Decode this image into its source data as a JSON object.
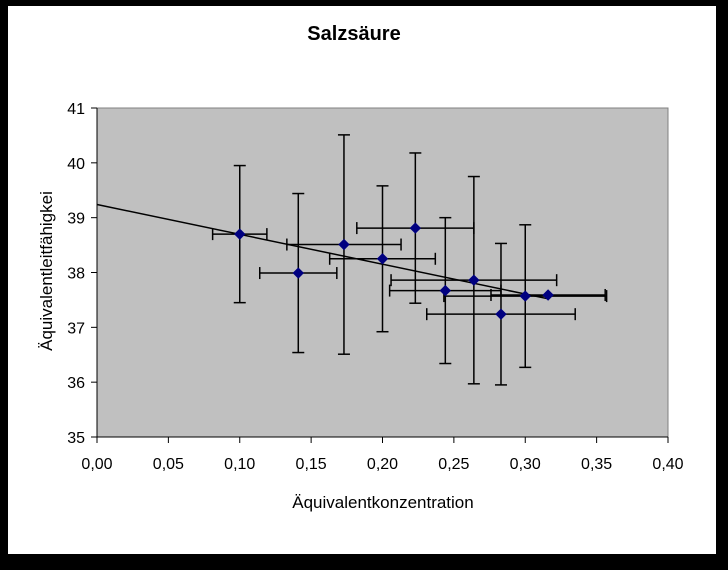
{
  "chart_data": {
    "type": "scatter",
    "title": "Salzsäure",
    "xlabel": "Äquivalentkonzentration",
    "ylabel": "Äquivalentleitfähigkei",
    "xlim": [
      0,
      0.4
    ],
    "ylim": [
      35,
      41
    ],
    "x_ticks": [
      "0,00",
      "0,05",
      "0,10",
      "0,15",
      "0,20",
      "0,25",
      "0,30",
      "0,35",
      "0,40"
    ],
    "y_ticks": [
      "35",
      "36",
      "37",
      "38",
      "39",
      "40",
      "41"
    ],
    "grid": false,
    "legend": "none",
    "colors": {
      "plot_background": "#c0c0c0",
      "marker": "#000080",
      "trendline": "#000000",
      "error_bars": "#000000"
    },
    "points": [
      {
        "x": 0.1,
        "y": 38.7,
        "x_err": 0.019,
        "y_err": 1.25
      },
      {
        "x": 0.141,
        "y": 37.99,
        "x_err": 0.027,
        "y_err": 1.45
      },
      {
        "x": 0.173,
        "y": 38.51,
        "x_err": 0.04,
        "y_err": 2.0
      },
      {
        "x": 0.2,
        "y": 38.25,
        "x_err": 0.037,
        "y_err": 1.33
      },
      {
        "x": 0.223,
        "y": 38.81,
        "x_err": 0.041,
        "y_err": 1.37
      },
      {
        "x": 0.244,
        "y": 37.67,
        "x_err": 0.039,
        "y_err": 1.33
      },
      {
        "x": 0.264,
        "y": 37.86,
        "x_err": 0.058,
        "y_err": 1.89
      },
      {
        "x": 0.283,
        "y": 37.24,
        "x_err": 0.052,
        "y_err": 1.29
      },
      {
        "x": 0.3,
        "y": 37.57,
        "x_err": 0.057,
        "y_err": 1.3
      },
      {
        "x": 0.316,
        "y": 37.59,
        "x_err": 0.04,
        "y_err": 0.0
      }
    ],
    "trendline": {
      "x": [
        0.0,
        0.316
      ],
      "y": [
        39.24,
        37.52
      ]
    }
  }
}
